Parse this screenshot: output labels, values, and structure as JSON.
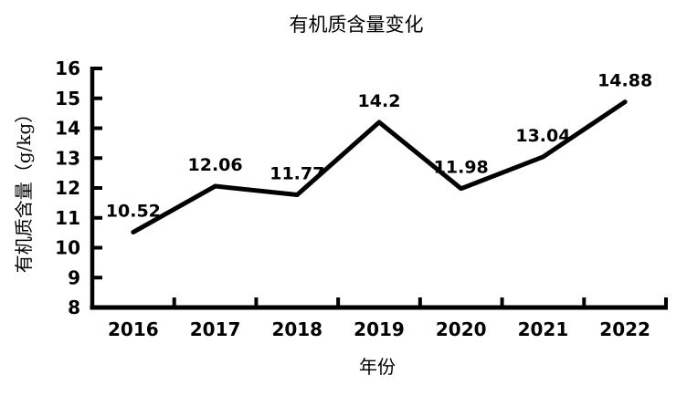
{
  "page": {
    "background": "#ffffff"
  },
  "chart_data": {
    "type": "line",
    "title": "有机质含量变化",
    "xlabel": "年份",
    "ylabel": "有机质含量（g/kg）",
    "categories": [
      "2016",
      "2017",
      "2018",
      "2019",
      "2020",
      "2021",
      "2022"
    ],
    "series": [
      {
        "name": "有机质含量",
        "values": [
          10.52,
          12.06,
          11.77,
          14.2,
          11.98,
          13.04,
          14.88
        ],
        "data_labels": [
          "10.52",
          "12.06",
          "11.77",
          "14.2",
          "11.98",
          "13.04",
          "14.88"
        ],
        "color": "#000000"
      }
    ],
    "ylim": [
      8,
      16
    ],
    "yticks": [
      8,
      9,
      10,
      11,
      12,
      13,
      14,
      15,
      16
    ],
    "grid": false,
    "legend_position": "none",
    "tick_direction": "inside",
    "axis_color": "#000000",
    "text_color": "#000000",
    "background": "#ffffff"
  }
}
